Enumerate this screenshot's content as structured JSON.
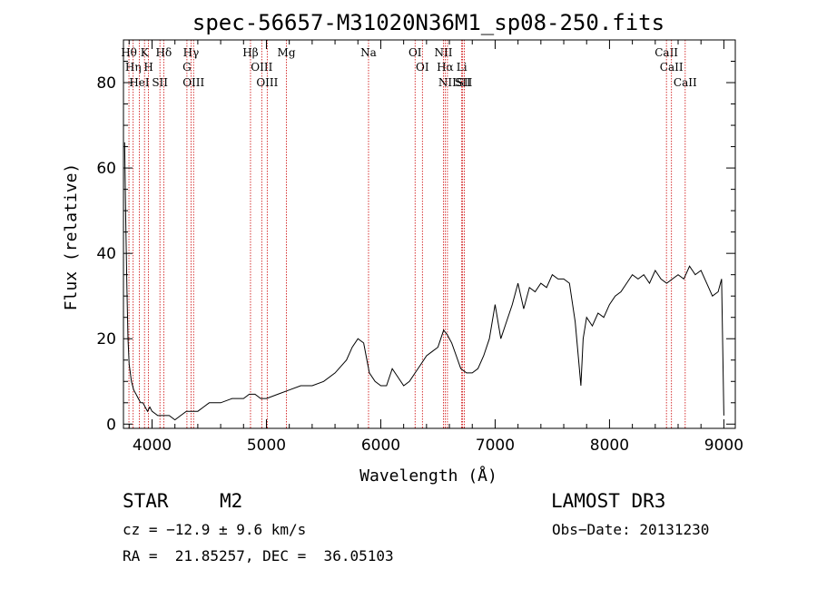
{
  "chart_data": {
    "type": "line",
    "title": "spec-56657-M31020N36M1_sp08-250.fits",
    "xlabel": "Wavelength (Å)",
    "ylabel": "Flux (relative)",
    "xlim": [
      3750,
      9100
    ],
    "ylim": [
      -1,
      90
    ],
    "x_ticks": [
      4000,
      5000,
      6000,
      7000,
      8000,
      9000
    ],
    "y_ticks": [
      0,
      20,
      40,
      60,
      80
    ],
    "series": [
      {
        "name": "spectrum",
        "x": [
          3760,
          3770,
          3780,
          3790,
          3800,
          3820,
          3840,
          3860,
          3880,
          3900,
          3920,
          3940,
          3960,
          3980,
          4000,
          4050,
          4100,
          4150,
          4200,
          4250,
          4300,
          4350,
          4400,
          4450,
          4500,
          4600,
          4700,
          4800,
          4850,
          4900,
          4950,
          5000,
          5100,
          5200,
          5300,
          5400,
          5500,
          5600,
          5700,
          5750,
          5800,
          5850,
          5900,
          5950,
          6000,
          6050,
          6100,
          6150,
          6200,
          6250,
          6300,
          6350,
          6400,
          6450,
          6500,
          6550,
          6580,
          6620,
          6660,
          6700,
          6750,
          6800,
          6850,
          6900,
          6950,
          7000,
          7050,
          7100,
          7150,
          7200,
          7250,
          7300,
          7350,
          7400,
          7450,
          7500,
          7550,
          7600,
          7650,
          7700,
          7730,
          7750,
          7770,
          7800,
          7850,
          7900,
          7950,
          8000,
          8050,
          8100,
          8150,
          8200,
          8250,
          8300,
          8350,
          8400,
          8450,
          8500,
          8550,
          8600,
          8650,
          8700,
          8750,
          8800,
          8850,
          8900,
          8950,
          8980,
          9000
        ],
        "y": [
          66,
          48,
          32,
          20,
          14,
          10,
          8,
          7,
          6,
          5,
          5,
          4,
          3,
          4,
          3,
          2,
          2,
          2,
          1,
          2,
          3,
          3,
          3,
          4,
          5,
          5,
          6,
          6,
          7,
          7,
          6,
          6,
          7,
          8,
          9,
          9,
          10,
          12,
          15,
          18,
          20,
          19,
          12,
          10,
          9,
          9,
          13,
          11,
          9,
          10,
          12,
          14,
          16,
          17,
          18,
          22,
          21,
          19,
          16,
          13,
          12,
          12,
          13,
          16,
          20,
          28,
          20,
          24,
          28,
          33,
          27,
          32,
          31,
          33,
          32,
          35,
          34,
          34,
          33,
          24,
          15,
          9,
          20,
          25,
          23,
          26,
          25,
          28,
          30,
          31,
          33,
          35,
          34,
          35,
          33,
          36,
          34,
          33,
          34,
          35,
          34,
          37,
          35,
          36,
          33,
          30,
          31,
          34,
          2
        ]
      }
    ],
    "spectral_lines": [
      {
        "label": "Hθ",
        "wavelength": 3798
      },
      {
        "label": "Hη",
        "wavelength": 3835
      },
      {
        "label": "HeI",
        "wavelength": 3889
      },
      {
        "label": "K",
        "wavelength": 3934
      },
      {
        "label": "H",
        "wavelength": 3969
      },
      {
        "label": "SII",
        "wavelength": 4069
      },
      {
        "label": "Hδ",
        "wavelength": 4102
      },
      {
        "label": "Hγ",
        "wavelength": 4341
      },
      {
        "label": "G",
        "wavelength": 4305
      },
      {
        "label": "OIII",
        "wavelength": 4363
      },
      {
        "label": "Hβ",
        "wavelength": 4861
      },
      {
        "label": "OIII",
        "wavelength": 4959
      },
      {
        "label": "OIII",
        "wavelength": 5007
      },
      {
        "label": "Mg",
        "wavelength": 5175
      },
      {
        "label": "Na",
        "wavelength": 5893
      },
      {
        "label": "OI",
        "wavelength": 6300
      },
      {
        "label": "OI",
        "wavelength": 6364
      },
      {
        "label": "NII",
        "wavelength": 6548
      },
      {
        "label": "Hα",
        "wavelength": 6563
      },
      {
        "label": "NII",
        "wavelength": 6583
      },
      {
        "label": "Li",
        "wavelength": 6708
      },
      {
        "label": "SII",
        "wavelength": 6716
      },
      {
        "label": "SII",
        "wavelength": 6731
      },
      {
        "label": "CaII",
        "wavelength": 8498
      },
      {
        "label": "CaII",
        "wavelength": 8542
      },
      {
        "label": "CaII",
        "wavelength": 8662
      }
    ],
    "colors": {
      "spectrum": "#000000",
      "lines": "#cc0000"
    }
  },
  "info": {
    "object_class": "STAR",
    "subclass": "M2",
    "survey": "LAMOST DR3",
    "cz": "cz = −12.9 ± 9.6 km/s",
    "obs_date": "Obs−Date: 20131230",
    "radec": "RA =  21.85257, DEC =  36.05103"
  }
}
